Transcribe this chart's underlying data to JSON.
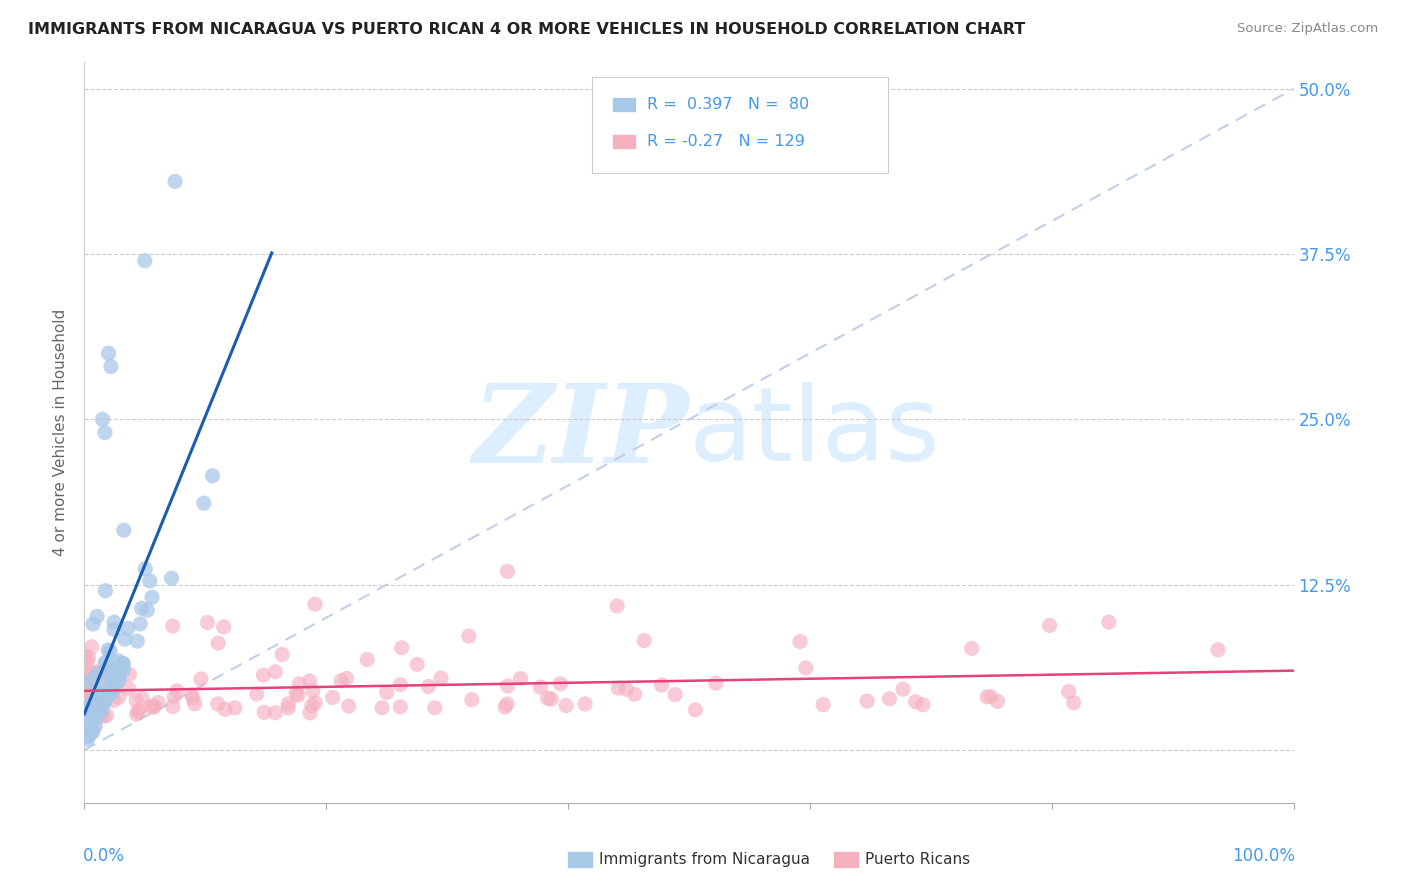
{
  "title": "IMMIGRANTS FROM NICARAGUA VS PUERTO RICAN 4 OR MORE VEHICLES IN HOUSEHOLD CORRELATION CHART",
  "source": "Source: ZipAtlas.com",
  "ylabel": "4 or more Vehicles in Household",
  "legend_label1": "Immigrants from Nicaragua",
  "legend_label2": "Puerto Ricans",
  "r1": 0.397,
  "n1": 80,
  "r2": -0.27,
  "n2": 129,
  "color1": "#a8c8e8",
  "color2": "#f5b0c0",
  "line_color1": "#1a5cb0",
  "line_color2": "#e8407a",
  "ref_line_color": "#c0d0e8",
  "watermark_color": "#ddeeff",
  "xlim": [
    0.0,
    1.0
  ],
  "ylim": [
    -0.04,
    0.52
  ],
  "yticks": [
    0.0,
    0.125,
    0.25,
    0.375,
    0.5
  ],
  "ytick_labels": [
    "",
    "12.5%",
    "25.0%",
    "37.5%",
    "50.0%"
  ],
  "background_color": "#ffffff",
  "grid_color": "#cccccc",
  "tick_color": "#4499ee",
  "title_color": "#222222",
  "source_color": "#888888",
  "ylabel_color": "#666666"
}
